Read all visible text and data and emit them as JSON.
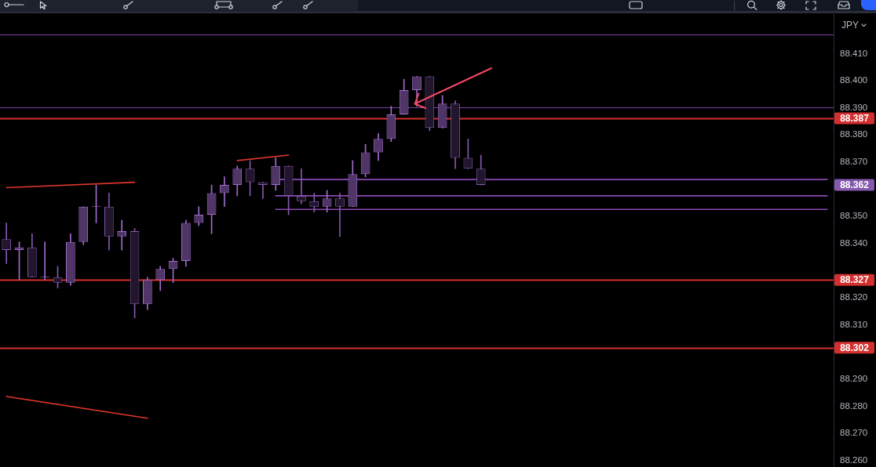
{
  "chart_data": {
    "type": "candlestick",
    "ylabel": "JPY",
    "tick_labels": "y",
    "categories": [
      null,
      null,
      null,
      null,
      null,
      null,
      null,
      null,
      null,
      null,
      null,
      null,
      null,
      null,
      null,
      null,
      null,
      null,
      null,
      null,
      null,
      null,
      null,
      null,
      null,
      null,
      null,
      null,
      null,
      null,
      null,
      null,
      null,
      null,
      null,
      null,
      null,
      null,
      null,
      null,
      null,
      null,
      null,
      null,
      null,
      null,
      null,
      null,
      null,
      null,
      null,
      null,
      null,
      null,
      null,
      null,
      null,
      null,
      null,
      null,
      null,
      null,
      null,
      null,
      null
    ],
    "ohlc": [
      [
        88.342,
        88.348,
        88.333,
        88.338
      ],
      [
        88.338,
        88.341,
        88.327,
        88.339
      ],
      [
        88.339,
        88.344,
        88.328,
        88.328
      ],
      [
        88.328,
        88.341,
        88.327,
        88.328
      ],
      [
        88.328,
        88.332,
        88.324,
        88.326
      ],
      [
        88.326,
        88.344,
        88.325,
        88.341
      ],
      [
        88.341,
        88.354,
        88.34,
        88.354
      ],
      [
        88.354,
        88.362,
        88.348,
        88.354
      ],
      [
        88.354,
        88.359,
        88.338,
        88.343
      ],
      [
        88.343,
        88.349,
        88.338,
        88.345
      ],
      [
        88.345,
        88.346,
        88.313,
        88.318
      ],
      [
        88.318,
        88.328,
        88.316,
        88.327
      ],
      [
        88.327,
        88.332,
        88.323,
        88.331
      ],
      [
        88.331,
        88.335,
        88.326,
        88.334
      ],
      [
        88.334,
        88.349,
        88.332,
        88.348
      ],
      [
        88.348,
        88.354,
        88.347,
        88.351
      ],
      [
        88.351,
        88.362,
        88.344,
        88.359
      ],
      [
        88.359,
        88.365,
        88.354,
        88.362
      ],
      [
        88.362,
        88.369,
        88.358,
        88.368
      ],
      [
        88.368,
        88.371,
        88.358,
        88.363
      ],
      [
        88.363,
        88.363,
        88.357,
        88.362
      ],
      [
        88.362,
        88.372,
        88.36,
        88.369
      ],
      [
        88.369,
        88.369,
        88.351,
        88.358
      ],
      [
        88.358,
        88.368,
        88.355,
        88.356
      ],
      [
        88.356,
        88.359,
        88.352,
        88.354
      ],
      [
        88.354,
        88.36,
        88.352,
        88.357
      ],
      [
        88.357,
        88.359,
        88.343,
        88.354
      ],
      [
        88.354,
        88.371,
        88.354,
        88.366
      ],
      [
        88.366,
        88.377,
        88.365,
        88.374
      ],
      [
        88.374,
        88.381,
        88.371,
        88.379
      ],
      [
        88.379,
        88.391,
        88.378,
        88.388
      ],
      [
        88.388,
        88.401,
        88.388,
        88.397
      ],
      [
        88.397,
        88.402,
        88.391,
        88.402
      ],
      [
        88.402,
        88.402,
        88.382,
        88.383
      ],
      [
        88.383,
        88.395,
        88.383,
        88.392
      ],
      [
        88.392,
        88.393,
        88.368,
        88.372
      ],
      [
        88.372,
        88.379,
        88.368,
        88.368
      ],
      [
        88.368,
        88.373,
        88.362,
        88.362
      ],
      null,
      null,
      null,
      null,
      null,
      null,
      null,
      null,
      null,
      null,
      null,
      null,
      null,
      null,
      null,
      null,
      null,
      null,
      null,
      null,
      null,
      null,
      null,
      null,
      null,
      null,
      null
    ],
    "colors": [
      "#8458ad",
      "#a06bcc",
      "#8458ad",
      "#a06bcc",
      "#8458ad",
      "#a06bcc",
      "#a06bcc",
      "#a06bcc",
      "#8458ad",
      "#a06bcc",
      "#8458ad",
      "#a06bcc",
      "#a06bcc",
      "#a06bcc",
      "#a06bcc",
      "#a06bcc",
      "#a06bcc",
      "#a06bcc",
      "#a06bcc",
      "#8458ad",
      "#8458ad",
      "#a06bcc",
      "#8458ad",
      "#8458ad",
      "#8458ad",
      "#a06bcc",
      "#8458ad",
      "#a06bcc",
      "#a06bcc",
      "#a06bcc",
      "#a06bcc",
      "#a06bcc",
      "#a06bcc",
      "#8458ad",
      "#a06bcc",
      "#8458ad",
      "#8458ad",
      "#8458ad",
      null,
      null,
      null,
      null,
      null,
      null,
      null,
      null,
      null,
      null,
      null,
      null,
      null,
      null,
      null,
      null,
      null,
      null,
      null,
      null,
      null,
      null,
      null,
      null,
      null,
      null,
      null
    ],
    "ylim": [
      88.258,
      88.425
    ],
    "yticks": [
      {
        "value": 88.26,
        "label": "88.260"
      },
      {
        "value": 88.27,
        "label": "88.270"
      },
      {
        "value": 88.28,
        "label": "88.280"
      },
      {
        "value": 88.29,
        "label": "88.290"
      },
      {
        "value": 88.31,
        "label": "88.310"
      },
      {
        "value": 88.32,
        "label": "88.320"
      },
      {
        "value": 88.34,
        "label": "88.340"
      },
      {
        "value": 88.35,
        "label": "88.350"
      },
      {
        "value": 88.37,
        "label": "88.370"
      },
      {
        "value": 88.38,
        "label": "88.380"
      },
      {
        "value": 88.39,
        "label": "88.390"
      },
      {
        "value": 88.4,
        "label": "88.400"
      },
      {
        "value": 88.41,
        "label": "88.410"
      }
    ],
    "series": [
      {
        "type": "line",
        "color": "#e0362b",
        "values": [
          88.361,
          null,
          null,
          null,
          null,
          null,
          null,
          null,
          null,
          null,
          88.363,
          null,
          null,
          null,
          null,
          null,
          null,
          null,
          null,
          null,
          null,
          null,
          null,
          null,
          null,
          null,
          null,
          null,
          null,
          null,
          null,
          null,
          null,
          null,
          null,
          null,
          null,
          null,
          null,
          null,
          null,
          null,
          null,
          null,
          null,
          null,
          null,
          null,
          null,
          null,
          null,
          null,
          null,
          null,
          null,
          null,
          null,
          null,
          null,
          null,
          null,
          null,
          null,
          null,
          null
        ]
      },
      {
        "type": "line",
        "color": "#e0362b",
        "values": [
          null,
          null,
          null,
          null,
          null,
          null,
          null,
          null,
          null,
          null,
          null,
          null,
          null,
          null,
          null,
          null,
          null,
          null,
          88.371,
          null,
          null,
          null,
          88.373,
          null,
          null,
          null,
          null,
          null,
          null,
          null,
          null,
          null,
          null,
          null,
          null,
          null,
          null,
          null,
          null,
          null,
          null,
          null,
          null,
          null,
          null,
          null,
          null,
          null,
          null,
          null,
          null,
          null,
          null,
          null,
          null,
          null,
          null,
          null,
          null,
          null,
          null,
          null,
          null,
          null,
          null
        ]
      },
      {
        "type": "line",
        "color": "#e0362b",
        "values": [
          88.284,
          null,
          null,
          null,
          null,
          null,
          null,
          null,
          null,
          null,
          null,
          88.276,
          null,
          null,
          null,
          null,
          null,
          null,
          null,
          null,
          null,
          null,
          null,
          null,
          null,
          null,
          null,
          null,
          null,
          null,
          null,
          null,
          null,
          null,
          null,
          null,
          null,
          null,
          null,
          null,
          null,
          null,
          null,
          null,
          null,
          null,
          null,
          null,
          null,
          null,
          null,
          null,
          null,
          null,
          null,
          null,
          null,
          null,
          null,
          null,
          null,
          null,
          null,
          null,
          null
        ]
      },
      {
        "type": "line",
        "color": "#8a49b5",
        "values": [
          null,
          null,
          null,
          null,
          null,
          null,
          null,
          null,
          null,
          null,
          null,
          null,
          null,
          null,
          null,
          null,
          null,
          null,
          null,
          null,
          null,
          88.364,
          null,
          null,
          null,
          null,
          null,
          null,
          null,
          null,
          null,
          null,
          null,
          null,
          null,
          null,
          null,
          null,
          null,
          null,
          null,
          null,
          null,
          null,
          null,
          null,
          null,
          null,
          null,
          null,
          null,
          null,
          null,
          null,
          null,
          null,
          null,
          null,
          null,
          null,
          null,
          null,
          null,
          null,
          88.364
        ]
      },
      {
        "type": "line",
        "color": "#8a49b5",
        "values": [
          null,
          null,
          null,
          null,
          null,
          null,
          null,
          null,
          null,
          null,
          null,
          null,
          null,
          null,
          null,
          null,
          null,
          null,
          null,
          null,
          null,
          88.358,
          null,
          null,
          null,
          null,
          null,
          null,
          null,
          null,
          null,
          null,
          null,
          null,
          null,
          null,
          null,
          null,
          null,
          null,
          null,
          null,
          null,
          null,
          null,
          null,
          null,
          null,
          null,
          null,
          null,
          null,
          null,
          null,
          null,
          null,
          null,
          null,
          null,
          null,
          null,
          null,
          null,
          null,
          88.358
        ]
      },
      {
        "type": "line",
        "color": "#8a49b5",
        "values": [
          null,
          null,
          null,
          null,
          null,
          null,
          null,
          null,
          null,
          null,
          null,
          null,
          null,
          null,
          null,
          null,
          null,
          null,
          null,
          null,
          null,
          88.353,
          null,
          null,
          null,
          null,
          null,
          null,
          null,
          null,
          null,
          null,
          null,
          null,
          null,
          null,
          null,
          null,
          null,
          null,
          null,
          null,
          null,
          null,
          null,
          null,
          null,
          null,
          null,
          null,
          null,
          null,
          null,
          null,
          null,
          null,
          null,
          null,
          null,
          null,
          null,
          null,
          null,
          null,
          88.353
        ]
      }
    ],
    "ref_lines": [
      {
        "axis": "y",
        "value": 88.4175,
        "color": "#7b42a3"
      },
      {
        "axis": "y",
        "value": 88.3905,
        "color": "#7b42a3"
      },
      {
        "axis": "y",
        "value": 88.3866,
        "label": "88.387",
        "color": "#d32f2f"
      },
      {
        "axis": "y",
        "value": 88.327,
        "label": "88.327",
        "color": "#d32f2f"
      },
      {
        "axis": "y",
        "value": 88.302,
        "label": "88.302",
        "color": "#d32f2f"
      }
    ],
    "annotations": [
      "88.362"
    ]
  }
}
